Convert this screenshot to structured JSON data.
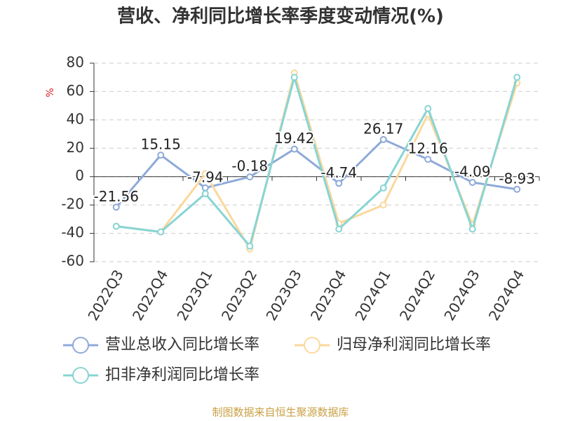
{
  "chart_data": {
    "type": "line",
    "title": "营收、净利同比增长率季度变动情况(%)",
    "ylabel": "%",
    "source": "制图数据来自恒生聚源数据库",
    "categories": [
      "2022Q3",
      "2022Q4",
      "2023Q1",
      "2023Q2",
      "2023Q3",
      "2023Q4",
      "2024Q1",
      "2024Q2",
      "2024Q3",
      "2024Q4"
    ],
    "series": [
      {
        "name": "营业总收入同比增长率",
        "color": "#8eaad8",
        "values": [
          -21.56,
          15.15,
          -7.94,
          -0.18,
          19.42,
          -4.74,
          26.17,
          12.16,
          -4.09,
          -8.93
        ],
        "show_labels": true
      },
      {
        "name": "归母净利润同比增长率",
        "color": "#fad89c",
        "values": [
          -35,
          -39,
          2,
          -51,
          73,
          -33,
          -20,
          44,
          -34,
          66
        ],
        "show_labels": false
      },
      {
        "name": "扣非净利润同比增长率",
        "color": "#88d4d4",
        "values": [
          -35,
          -39,
          -12,
          -49,
          70,
          -37,
          -8,
          48,
          -37,
          70
        ],
        "show_labels": false
      }
    ],
    "ylim": [
      -60,
      80
    ],
    "yticks": [
      -60,
      -40,
      -20,
      0,
      20,
      40,
      60,
      80
    ],
    "grid": true
  }
}
